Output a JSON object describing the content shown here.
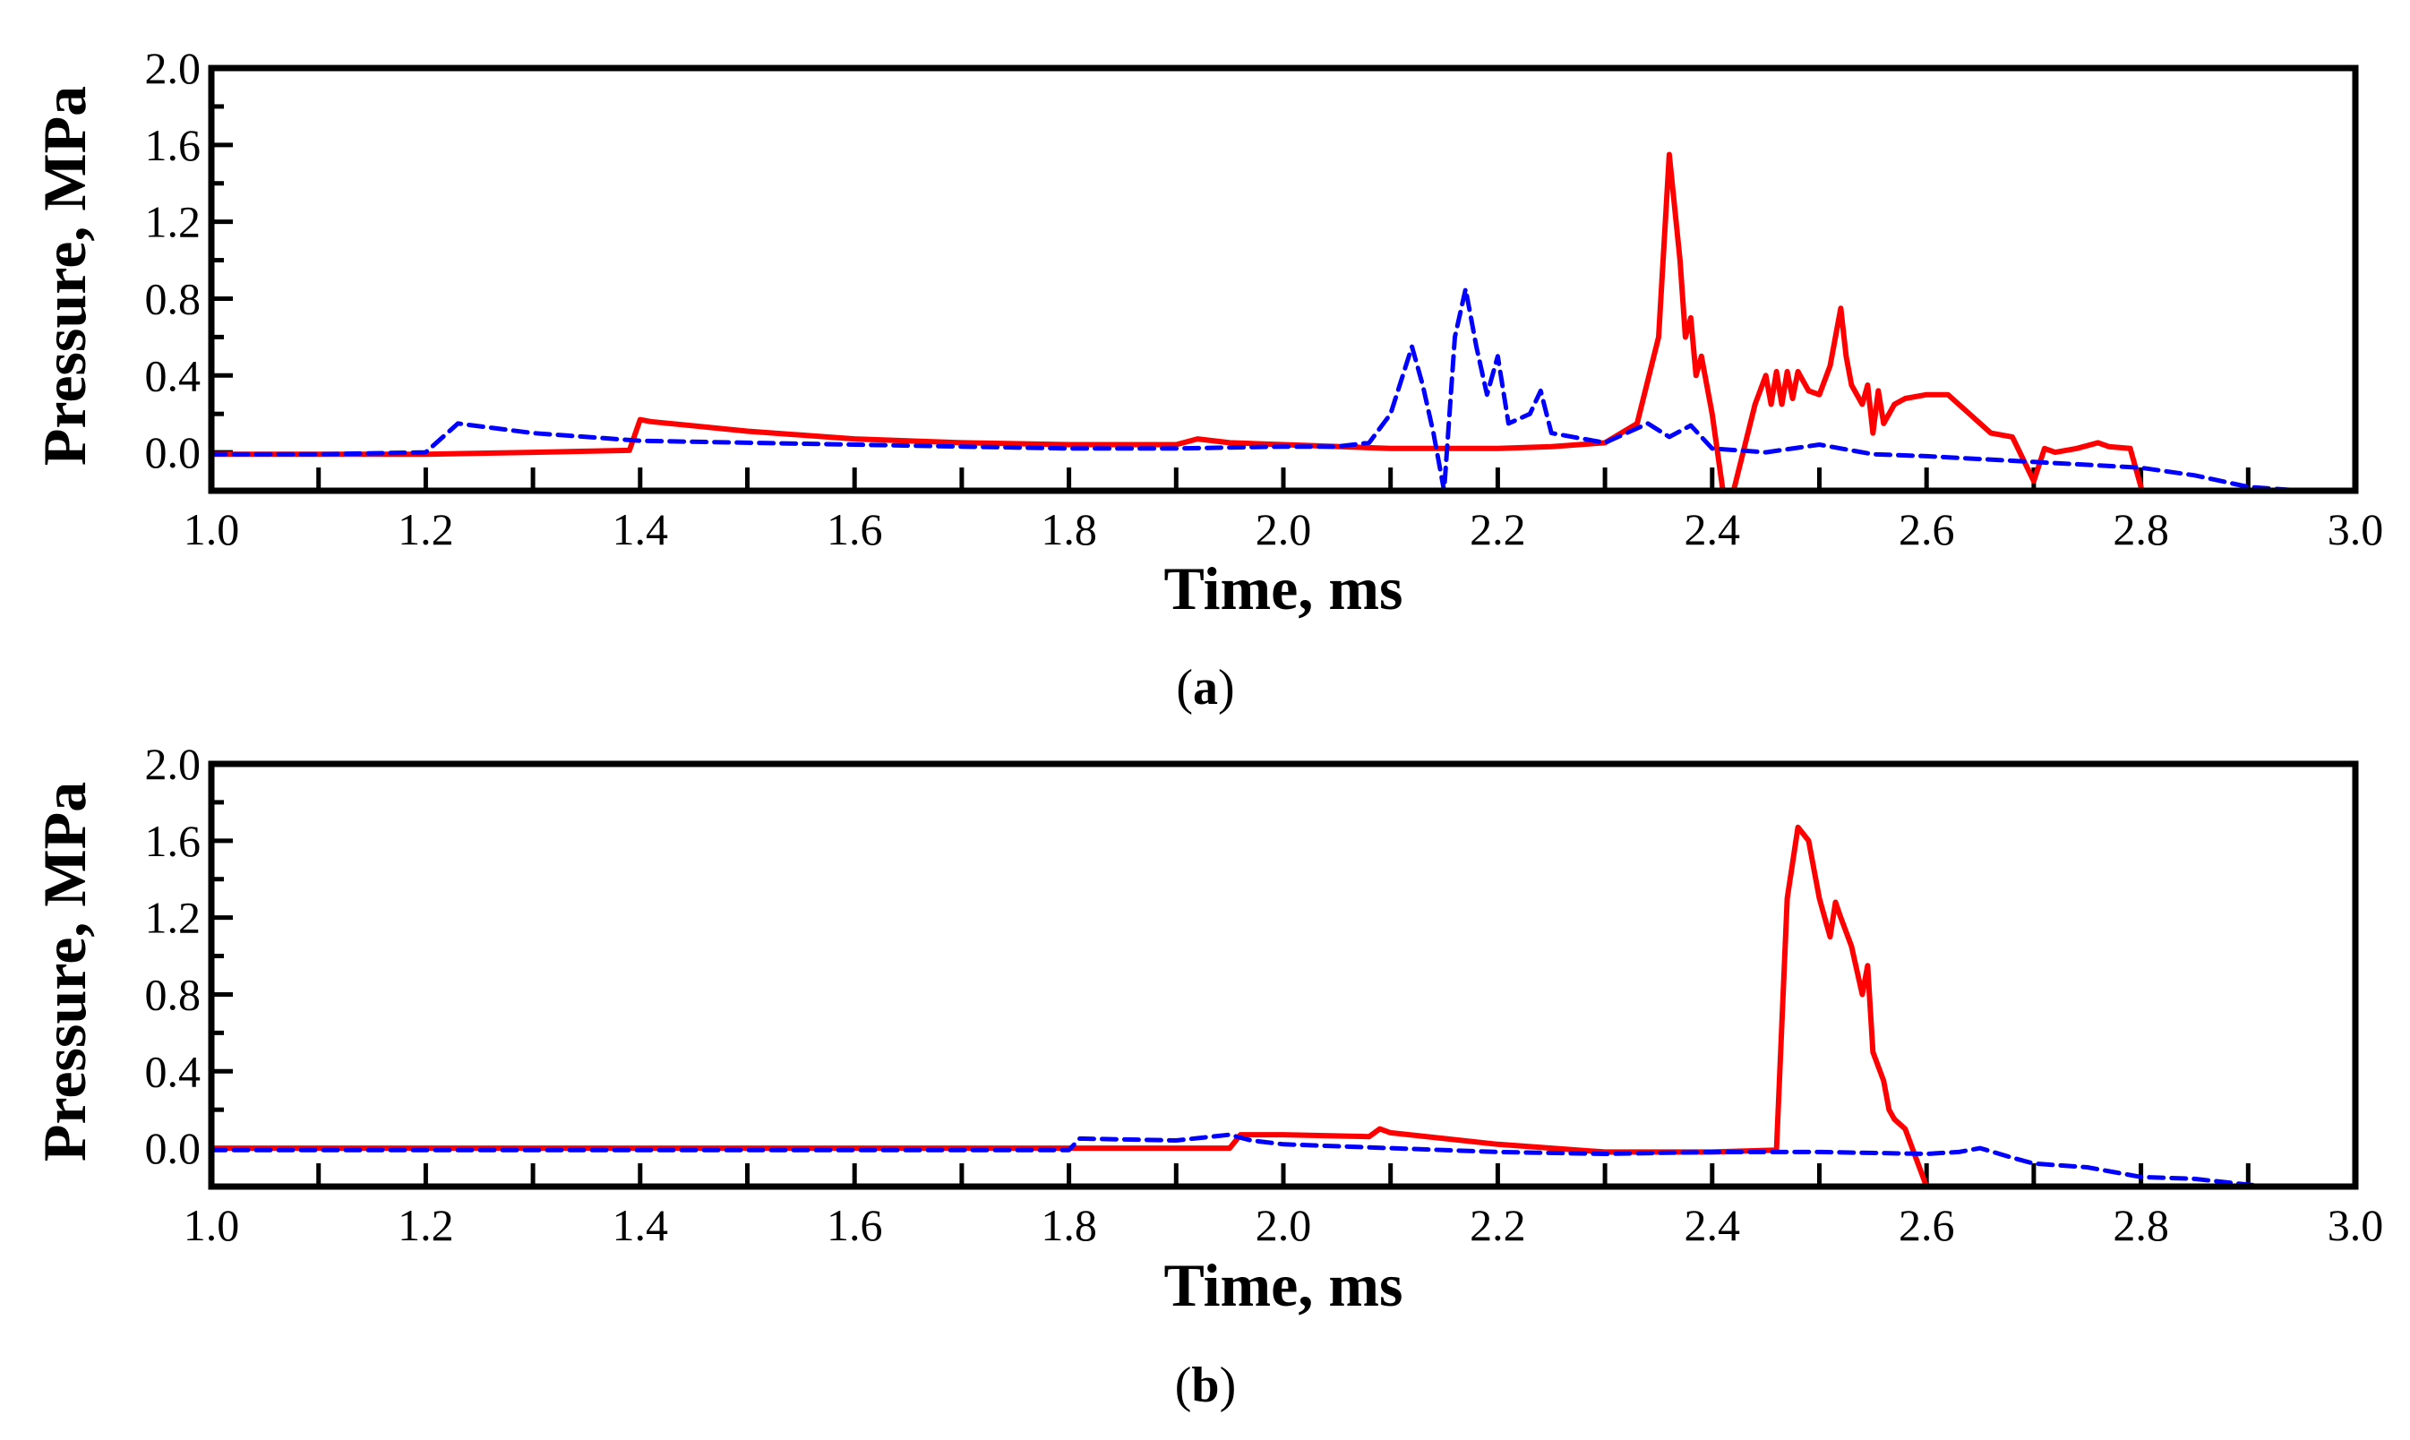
{
  "chart_data": [
    {
      "type": "line",
      "panel_label": "a",
      "xlabel": "Time, ms",
      "ylabel": "Pressure, MPa",
      "xlim": [
        1.0,
        3.0
      ],
      "ylim": [
        -0.2,
        2.0
      ],
      "x_ticks": [
        "1.0",
        "1.2",
        "1.4",
        "1.6",
        "1.8",
        "2.0",
        "2.2",
        "2.4",
        "2.6",
        "2.8",
        "3.0"
      ],
      "y_ticks": [
        "0.0",
        "0.4",
        "0.8",
        "1.2",
        "1.6",
        "2.0"
      ],
      "series": [
        {
          "name": "solid red",
          "color": "#ff0000",
          "dash": "solid",
          "x": [
            1.0,
            1.1,
            1.2,
            1.3,
            1.39,
            1.4,
            1.41,
            1.5,
            1.6,
            1.7,
            1.8,
            1.9,
            1.92,
            1.95,
            2.0,
            2.1,
            2.2,
            2.25,
            2.3,
            2.33,
            2.35,
            2.36,
            2.37,
            2.375,
            2.38,
            2.385,
            2.39,
            2.4,
            2.41,
            2.42,
            2.44,
            2.45,
            2.455,
            2.46,
            2.465,
            2.47,
            2.475,
            2.48,
            2.49,
            2.5,
            2.51,
            2.52,
            2.525,
            2.53,
            2.54,
            2.545,
            2.55,
            2.555,
            2.56,
            2.57,
            2.58,
            2.6,
            2.62,
            2.64,
            2.66,
            2.68,
            2.7,
            2.71,
            2.72,
            2.74,
            2.76,
            2.77,
            2.79,
            2.8
          ],
          "y": [
            -0.01,
            -0.01,
            -0.01,
            0.0,
            0.01,
            0.17,
            0.16,
            0.11,
            0.07,
            0.05,
            0.04,
            0.04,
            0.07,
            0.05,
            0.04,
            0.02,
            0.02,
            0.03,
            0.05,
            0.15,
            0.6,
            1.55,
            1.0,
            0.6,
            0.7,
            0.4,
            0.5,
            0.2,
            -0.2,
            -0.2,
            0.25,
            0.4,
            0.25,
            0.42,
            0.25,
            0.42,
            0.28,
            0.42,
            0.32,
            0.3,
            0.45,
            0.75,
            0.5,
            0.35,
            0.25,
            0.35,
            0.1,
            0.32,
            0.15,
            0.25,
            0.28,
            0.3,
            0.3,
            0.2,
            0.1,
            0.08,
            -0.15,
            0.02,
            0.0,
            0.02,
            0.05,
            0.03,
            0.02,
            -0.18
          ]
        },
        {
          "name": "dashed blue",
          "color": "#0000ff",
          "dash": "dashed",
          "x": [
            1.0,
            1.1,
            1.2,
            1.23,
            1.3,
            1.4,
            1.5,
            1.6,
            1.7,
            1.8,
            1.9,
            2.0,
            2.05,
            2.08,
            2.1,
            2.12,
            2.13,
            2.14,
            2.15,
            2.16,
            2.17,
            2.18,
            2.19,
            2.2,
            2.21,
            2.23,
            2.24,
            2.25,
            2.3,
            2.34,
            2.36,
            2.38,
            2.4,
            2.45,
            2.5,
            2.55,
            2.6,
            2.7,
            2.8,
            2.85,
            2.9,
            2.95
          ],
          "y": [
            -0.01,
            -0.01,
            0.0,
            0.15,
            0.1,
            0.06,
            0.05,
            0.04,
            0.03,
            0.02,
            0.02,
            0.03,
            0.03,
            0.05,
            0.2,
            0.55,
            0.35,
            0.1,
            -0.2,
            0.6,
            0.85,
            0.55,
            0.3,
            0.5,
            0.15,
            0.2,
            0.32,
            0.1,
            0.05,
            0.15,
            0.08,
            0.14,
            0.02,
            0.0,
            0.04,
            -0.01,
            -0.02,
            -0.05,
            -0.08,
            -0.12,
            -0.18,
            -0.2
          ]
        }
      ]
    },
    {
      "type": "line",
      "panel_label": "b",
      "xlabel": "Time, ms",
      "ylabel": "Pressure, MPa",
      "xlim": [
        1.0,
        3.0
      ],
      "ylim": [
        -0.2,
        2.0
      ],
      "x_ticks": [
        "1.0",
        "1.2",
        "1.4",
        "1.6",
        "1.8",
        "2.0",
        "2.2",
        "2.4",
        "2.6",
        "2.8",
        "3.0"
      ],
      "y_ticks": [
        "0.0",
        "0.4",
        "0.8",
        "1.2",
        "1.6",
        "2.0"
      ],
      "series": [
        {
          "name": "solid red",
          "color": "#ff0000",
          "dash": "solid",
          "x": [
            1.0,
            1.5,
            1.8,
            1.95,
            1.96,
            2.0,
            2.08,
            2.09,
            2.1,
            2.2,
            2.3,
            2.4,
            2.46,
            2.47,
            2.48,
            2.49,
            2.5,
            2.51,
            2.515,
            2.52,
            2.53,
            2.54,
            2.545,
            2.55,
            2.56,
            2.565,
            2.57,
            2.58,
            2.59,
            2.6,
            2.62,
            2.63
          ],
          "y": [
            0.0,
            0.0,
            0.0,
            0.0,
            0.07,
            0.07,
            0.06,
            0.1,
            0.08,
            0.02,
            -0.02,
            -0.02,
            -0.01,
            1.3,
            1.67,
            1.6,
            1.3,
            1.1,
            1.28,
            1.2,
            1.05,
            0.8,
            0.95,
            0.5,
            0.35,
            0.2,
            0.15,
            0.1,
            -0.05,
            -0.2,
            -0.2,
            -0.2
          ]
        },
        {
          "name": "dashed blue",
          "color": "#0000ff",
          "dash": "dashed",
          "x": [
            1.0,
            1.5,
            1.8,
            1.81,
            1.9,
            1.95,
            1.97,
            2.0,
            2.1,
            2.2,
            2.3,
            2.4,
            2.5,
            2.6,
            2.63,
            2.65,
            2.68,
            2.7,
            2.75,
            2.8,
            2.85,
            2.9,
            2.92
          ],
          "y": [
            -0.01,
            -0.01,
            -0.01,
            0.05,
            0.04,
            0.07,
            0.04,
            0.02,
            0.0,
            -0.02,
            -0.03,
            -0.02,
            -0.02,
            -0.03,
            -0.02,
            0.0,
            -0.05,
            -0.08,
            -0.1,
            -0.15,
            -0.16,
            -0.19,
            -0.2
          ]
        }
      ]
    }
  ]
}
